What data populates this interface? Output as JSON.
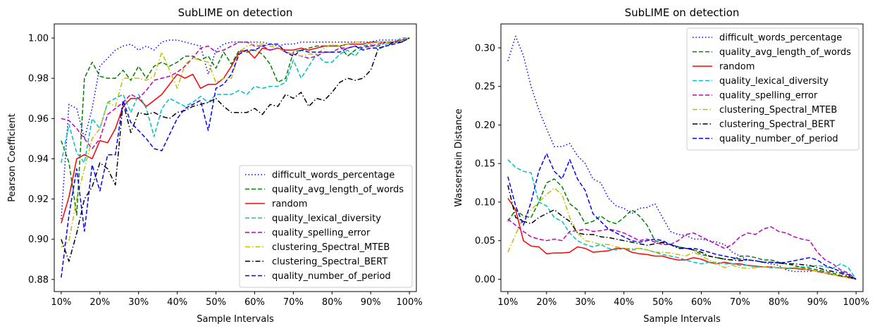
{
  "chart_data": [
    {
      "type": "line",
      "title": "SubLIME on detection",
      "xlabel": "Sample Intervals",
      "ylabel": "Pearson Coefficient",
      "xlim": [
        8.2,
        101.8
      ],
      "ylim": [
        0.874,
        1.007
      ],
      "xticks": [
        10,
        20,
        30,
        40,
        50,
        60,
        70,
        80,
        90,
        100
      ],
      "xticklabels": [
        "10%",
        "20%",
        "30%",
        "40%",
        "50%",
        "60%",
        "70%",
        "80%",
        "90%",
        "100%"
      ],
      "yticks": [
        0.88,
        0.9,
        0.92,
        0.94,
        0.96,
        0.98,
        1.0
      ],
      "yticklabels": [
        "0.88",
        "0.90",
        "0.92",
        "0.94",
        "0.96",
        "0.98",
        "1.00"
      ],
      "legend": "lower-right",
      "grid": false,
      "x": [
        10,
        12,
        14,
        16,
        18,
        20,
        22,
        24,
        26,
        28,
        30,
        32,
        34,
        36,
        38,
        40,
        42,
        44,
        46,
        48,
        50,
        52,
        54,
        56,
        58,
        60,
        62,
        64,
        66,
        68,
        70,
        72,
        74,
        76,
        78,
        80,
        82,
        84,
        86,
        88,
        90,
        92,
        94,
        96,
        98,
        100
      ],
      "series": [
        {
          "name": "difficult_words_percentage",
          "color": "#0000ff",
          "dash": "dotted",
          "values": [
            0.91,
            0.967,
            0.965,
            0.95,
            0.965,
            0.986,
            0.99,
            0.994,
            0.996,
            0.997,
            0.994,
            0.996,
            0.994,
            0.998,
            0.999,
            0.999,
            0.998,
            0.997,
            0.996,
            0.982,
            0.994,
            0.997,
            0.998,
            0.998,
            0.998,
            0.998,
            0.998,
            0.997,
            0.996,
            0.997,
            0.997,
            0.998,
            0.998,
            0.998,
            0.998,
            0.998,
            0.998,
            0.998,
            0.998,
            0.998,
            0.998,
            0.999,
            0.999,
            0.999,
            0.999,
            1.0
          ]
        },
        {
          "name": "quality_avg_length_of_words",
          "color": "#008000",
          "dash": "dashed",
          "values": [
            0.949,
            0.938,
            0.912,
            0.98,
            0.988,
            0.981,
            0.98,
            0.98,
            0.984,
            0.979,
            0.986,
            0.98,
            0.986,
            0.988,
            0.986,
            0.988,
            0.991,
            0.991,
            0.989,
            0.991,
            0.985,
            0.993,
            0.987,
            0.994,
            0.993,
            0.994,
            0.992,
            0.987,
            0.978,
            0.98,
            0.993,
            0.994,
            0.995,
            0.996,
            0.996,
            0.996,
            0.996,
            0.991,
            0.994,
            0.996,
            0.996,
            0.996,
            0.998,
            0.998,
            0.999,
            1.0
          ]
        },
        {
          "name": "random",
          "color": "#ff0000",
          "dash": "solid",
          "values": [
            0.908,
            0.921,
            0.94,
            0.942,
            0.94,
            0.949,
            0.948,
            0.955,
            0.966,
            0.97,
            0.97,
            0.966,
            0.969,
            0.972,
            0.977,
            0.982,
            0.98,
            0.982,
            0.975,
            0.977,
            0.977,
            0.98,
            0.986,
            0.993,
            0.994,
            0.99,
            0.995,
            0.994,
            0.995,
            0.994,
            0.994,
            0.995,
            0.994,
            0.995,
            0.996,
            0.996,
            0.996,
            0.997,
            0.997,
            0.997,
            0.998,
            0.998,
            0.998,
            0.998,
            0.999,
            1.0
          ]
        },
        {
          "name": "quality_lexical_diversity",
          "color": "#00bfbf",
          "dash": "dashed",
          "values": [
            0.938,
            0.957,
            0.943,
            0.938,
            0.96,
            0.955,
            0.968,
            0.97,
            0.972,
            0.963,
            0.972,
            0.965,
            0.951,
            0.965,
            0.97,
            0.968,
            0.966,
            0.968,
            0.971,
            0.968,
            0.972,
            0.972,
            0.972,
            0.974,
            0.972,
            0.976,
            0.975,
            0.976,
            0.976,
            0.978,
            0.989,
            0.98,
            0.986,
            0.992,
            0.988,
            0.988,
            0.992,
            0.994,
            0.991,
            0.996,
            0.997,
            0.994,
            0.997,
            0.998,
            1.0,
            1.0
          ]
        },
        {
          "name": "quality_spelling_error",
          "color": "#bf00bf",
          "dash": "dashed",
          "values": [
            0.96,
            0.959,
            0.955,
            0.95,
            0.945,
            0.95,
            0.962,
            0.965,
            0.968,
            0.972,
            0.97,
            0.974,
            0.979,
            0.98,
            0.981,
            0.983,
            0.986,
            0.99,
            0.995,
            0.996,
            0.993,
            0.994,
            0.996,
            0.998,
            0.998,
            0.996,
            0.996,
            0.994,
            0.995,
            0.993,
            0.992,
            0.991,
            0.99,
            0.991,
            0.993,
            0.993,
            0.995,
            0.995,
            0.996,
            0.995,
            0.996,
            0.997,
            0.998,
            0.998,
            0.999,
            1.0
          ]
        },
        {
          "name": "clustering_Spectral_MTEB",
          "color": "#bfbf00",
          "dash": "dashdot",
          "values": [
            0.896,
            0.899,
            0.92,
            0.935,
            0.95,
            0.955,
            0.968,
            0.966,
            0.98,
            0.98,
            0.98,
            0.979,
            0.981,
            0.993,
            0.984,
            0.975,
            0.987,
            0.99,
            0.989,
            0.988,
            0.978,
            0.98,
            0.98,
            0.993,
            0.996,
            0.997,
            0.997,
            0.996,
            0.995,
            0.993,
            0.992,
            0.991,
            0.992,
            0.992,
            0.995,
            0.997,
            0.996,
            0.997,
            0.998,
            0.998,
            0.997,
            0.998,
            0.998,
            0.997,
            0.999,
            1.0
          ]
        },
        {
          "name": "clustering_Spectral_BERT",
          "color": "#000000",
          "dash": "dashdot",
          "values": [
            0.9,
            0.889,
            0.903,
            0.92,
            0.926,
            0.938,
            0.935,
            0.927,
            0.968,
            0.953,
            0.963,
            0.962,
            0.963,
            0.961,
            0.96,
            0.963,
            0.964,
            0.966,
            0.967,
            0.968,
            0.97,
            0.966,
            0.963,
            0.963,
            0.963,
            0.965,
            0.962,
            0.967,
            0.966,
            0.972,
            0.97,
            0.973,
            0.966,
            0.97,
            0.969,
            0.973,
            0.978,
            0.98,
            0.979,
            0.98,
            0.984,
            0.995,
            0.996,
            0.998,
            0.998,
            1.0
          ]
        },
        {
          "name": "quality_number_of_period",
          "color": "#0000ff",
          "dash": "dashed",
          "values": [
            0.881,
            0.912,
            0.935,
            0.904,
            0.937,
            0.924,
            0.942,
            0.942,
            0.969,
            0.958,
            0.954,
            0.95,
            0.945,
            0.944,
            0.952,
            0.96,
            0.965,
            0.967,
            0.969,
            0.954,
            0.975,
            0.977,
            0.982,
            0.992,
            0.994,
            0.994,
            0.996,
            0.997,
            0.997,
            0.993,
            0.991,
            0.994,
            0.993,
            0.993,
            0.993,
            0.993,
            0.993,
            0.995,
            0.996,
            0.994,
            0.995,
            0.995,
            0.996,
            0.997,
            0.998,
            1.0
          ]
        }
      ]
    },
    {
      "type": "line",
      "title": "SubLIME on detection",
      "xlabel": "Sample Intervals",
      "ylabel": "Wasserstein Distance",
      "xlim": [
        8.2,
        101.8
      ],
      "ylim": [
        -0.016,
        0.331
      ],
      "xticks": [
        10,
        20,
        30,
        40,
        50,
        60,
        70,
        80,
        90,
        100
      ],
      "xticklabels": [
        "10%",
        "20%",
        "30%",
        "40%",
        "50%",
        "60%",
        "70%",
        "80%",
        "90%",
        "100%"
      ],
      "yticks": [
        0.0,
        0.05,
        0.1,
        0.15,
        0.2,
        0.25,
        0.3
      ],
      "yticklabels": [
        "0.00",
        "0.05",
        "0.10",
        "0.15",
        "0.20",
        "0.25",
        "0.30"
      ],
      "legend": "upper-right",
      "grid": false,
      "x": [
        10,
        12,
        14,
        16,
        18,
        20,
        22,
        24,
        26,
        28,
        30,
        32,
        34,
        36,
        38,
        40,
        42,
        44,
        46,
        48,
        50,
        52,
        54,
        56,
        58,
        60,
        62,
        64,
        66,
        68,
        70,
        72,
        74,
        76,
        78,
        80,
        82,
        84,
        86,
        88,
        90,
        92,
        94,
        96,
        98,
        100
      ],
      "series": [
        {
          "name": "difficult_words_percentage",
          "color": "#0000ff",
          "dash": "dotted",
          "values": [
            0.283,
            0.315,
            0.29,
            0.25,
            0.22,
            0.195,
            0.172,
            0.172,
            0.176,
            0.16,
            0.15,
            0.13,
            0.125,
            0.105,
            0.095,
            0.092,
            0.085,
            0.092,
            0.093,
            0.098,
            0.08,
            0.062,
            0.058,
            0.057,
            0.052,
            0.052,
            0.05,
            0.048,
            0.045,
            0.035,
            0.03,
            0.025,
            0.024,
            0.022,
            0.02,
            0.018,
            0.012,
            0.01,
            0.01,
            0.01,
            0.012,
            0.008,
            0.006,
            0.004,
            0.003,
            0.0
          ]
        },
        {
          "name": "quality_avg_length_of_words",
          "color": "#008000",
          "dash": "dashed",
          "values": [
            0.075,
            0.09,
            0.082,
            0.08,
            0.1,
            0.125,
            0.13,
            0.12,
            0.098,
            0.09,
            0.072,
            0.075,
            0.082,
            0.075,
            0.072,
            0.08,
            0.09,
            0.082,
            0.07,
            0.05,
            0.047,
            0.045,
            0.042,
            0.04,
            0.038,
            0.032,
            0.03,
            0.028,
            0.026,
            0.025,
            0.03,
            0.03,
            0.028,
            0.025,
            0.025,
            0.022,
            0.02,
            0.018,
            0.015,
            0.014,
            0.012,
            0.01,
            0.008,
            0.005,
            0.003,
            0.0
          ]
        },
        {
          "name": "random",
          "color": "#ff0000",
          "dash": "solid",
          "values": [
            0.105,
            0.09,
            0.05,
            0.043,
            0.042,
            0.033,
            0.034,
            0.034,
            0.035,
            0.042,
            0.04,
            0.035,
            0.036,
            0.037,
            0.04,
            0.04,
            0.035,
            0.033,
            0.032,
            0.03,
            0.03,
            0.027,
            0.025,
            0.025,
            0.028,
            0.026,
            0.022,
            0.02,
            0.022,
            0.02,
            0.02,
            0.018,
            0.017,
            0.016,
            0.016,
            0.015,
            0.014,
            0.014,
            0.013,
            0.012,
            0.01,
            0.008,
            0.006,
            0.004,
            0.002,
            0.0
          ]
        },
        {
          "name": "quality_lexical_diversity",
          "color": "#00bfbf",
          "dash": "dashed",
          "values": [
            0.155,
            0.145,
            0.14,
            0.138,
            0.1,
            0.095,
            0.08,
            0.075,
            0.06,
            0.05,
            0.045,
            0.042,
            0.045,
            0.04,
            0.038,
            0.04,
            0.038,
            0.04,
            0.038,
            0.035,
            0.032,
            0.03,
            0.028,
            0.025,
            0.022,
            0.02,
            0.022,
            0.022,
            0.02,
            0.02,
            0.018,
            0.018,
            0.016,
            0.016,
            0.015,
            0.015,
            0.014,
            0.015,
            0.016,
            0.016,
            0.018,
            0.016,
            0.014,
            0.02,
            0.015,
            0.0
          ]
        },
        {
          "name": "quality_spelling_error",
          "color": "#bf00bf",
          "dash": "dashed",
          "values": [
            0.078,
            0.07,
            0.062,
            0.055,
            0.052,
            0.05,
            0.052,
            0.05,
            0.062,
            0.063,
            0.065,
            0.062,
            0.063,
            0.065,
            0.063,
            0.06,
            0.055,
            0.05,
            0.052,
            0.048,
            0.045,
            0.045,
            0.05,
            0.058,
            0.06,
            0.055,
            0.05,
            0.045,
            0.04,
            0.045,
            0.055,
            0.06,
            0.058,
            0.065,
            0.068,
            0.062,
            0.06,
            0.055,
            0.052,
            0.05,
            0.035,
            0.025,
            0.02,
            0.012,
            0.008,
            0.0
          ]
        },
        {
          "name": "clustering_Spectral_MTEB",
          "color": "#bfbf00",
          "dash": "dashdot",
          "values": [
            0.035,
            0.058,
            0.08,
            0.09,
            0.1,
            0.11,
            0.118,
            0.11,
            0.08,
            0.06,
            0.05,
            0.048,
            0.045,
            0.045,
            0.042,
            0.04,
            0.04,
            0.04,
            0.038,
            0.035,
            0.035,
            0.034,
            0.032,
            0.03,
            0.035,
            0.03,
            0.025,
            0.02,
            0.015,
            0.018,
            0.015,
            0.014,
            0.015,
            0.016,
            0.016,
            0.015,
            0.015,
            0.015,
            0.014,
            0.012,
            0.01,
            0.008,
            0.006,
            0.004,
            0.002,
            0.0
          ]
        },
        {
          "name": "clustering_Spectral_BERT",
          "color": "#000000",
          "dash": "dashdot",
          "values": [
            0.122,
            0.08,
            0.075,
            0.072,
            0.08,
            0.085,
            0.09,
            0.082,
            0.075,
            0.06,
            0.058,
            0.058,
            0.055,
            0.054,
            0.052,
            0.05,
            0.048,
            0.046,
            0.044,
            0.046,
            0.048,
            0.045,
            0.04,
            0.04,
            0.038,
            0.035,
            0.03,
            0.028,
            0.026,
            0.025,
            0.024,
            0.025,
            0.024,
            0.022,
            0.022,
            0.021,
            0.02,
            0.02,
            0.019,
            0.018,
            0.015,
            0.012,
            0.01,
            0.008,
            0.004,
            0.0
          ]
        },
        {
          "name": "quality_number_of_period",
          "color": "#0000ff",
          "dash": "dashed",
          "values": [
            0.133,
            0.095,
            0.07,
            0.1,
            0.14,
            0.163,
            0.14,
            0.13,
            0.155,
            0.13,
            0.115,
            0.085,
            0.075,
            0.065,
            0.06,
            0.055,
            0.05,
            0.048,
            0.05,
            0.052,
            0.05,
            0.045,
            0.042,
            0.04,
            0.04,
            0.038,
            0.035,
            0.032,
            0.03,
            0.028,
            0.026,
            0.025,
            0.024,
            0.022,
            0.022,
            0.021,
            0.022,
            0.024,
            0.026,
            0.028,
            0.025,
            0.018,
            0.014,
            0.01,
            0.006,
            0.0
          ]
        }
      ]
    }
  ]
}
